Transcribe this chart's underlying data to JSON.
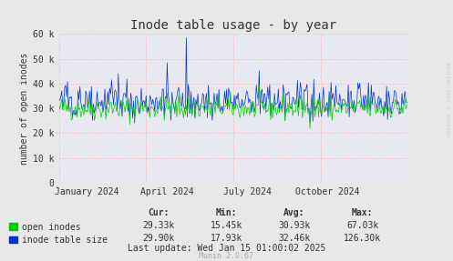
{
  "title": "Inode table usage - by year",
  "ylabel": "number of open inodes",
  "xlabel_ticks": [
    "January 2024",
    "April 2024",
    "July 2024",
    "October 2024"
  ],
  "xlabel_tick_positions": [
    0.08,
    0.31,
    0.54,
    0.77
  ],
  "ylim": [
    0,
    60000
  ],
  "yticks": [
    0,
    10000,
    20000,
    30000,
    40000,
    50000,
    60000
  ],
  "ytick_labels": [
    "0",
    "10 k",
    "20 k",
    "30 k",
    "40 k",
    "50 k",
    "60 k"
  ],
  "bg_color": "#e8e8e8",
  "plot_bg_color": "#e8e8f0",
  "grid_color": "#ff9999",
  "series1_color": "#00cc00",
  "series2_color": "#0033cc",
  "legend": [
    "open inodes",
    "inode table size"
  ],
  "stats_headers": [
    "Cur:",
    "Min:",
    "Avg:",
    "Max:"
  ],
  "stats_s1": [
    "29.33k",
    "15.45k",
    "30.93k",
    "67.03k"
  ],
  "stats_s2": [
    "29.90k",
    "17.93k",
    "32.46k",
    "126.30k"
  ],
  "last_update": "Last update: Wed Jan 15 01:00:02 2025",
  "munin_version": "Munin 2.0.67",
  "watermark": "RRDTOOL / TOBI OETIKER",
  "n_points": 365,
  "seed": 42
}
